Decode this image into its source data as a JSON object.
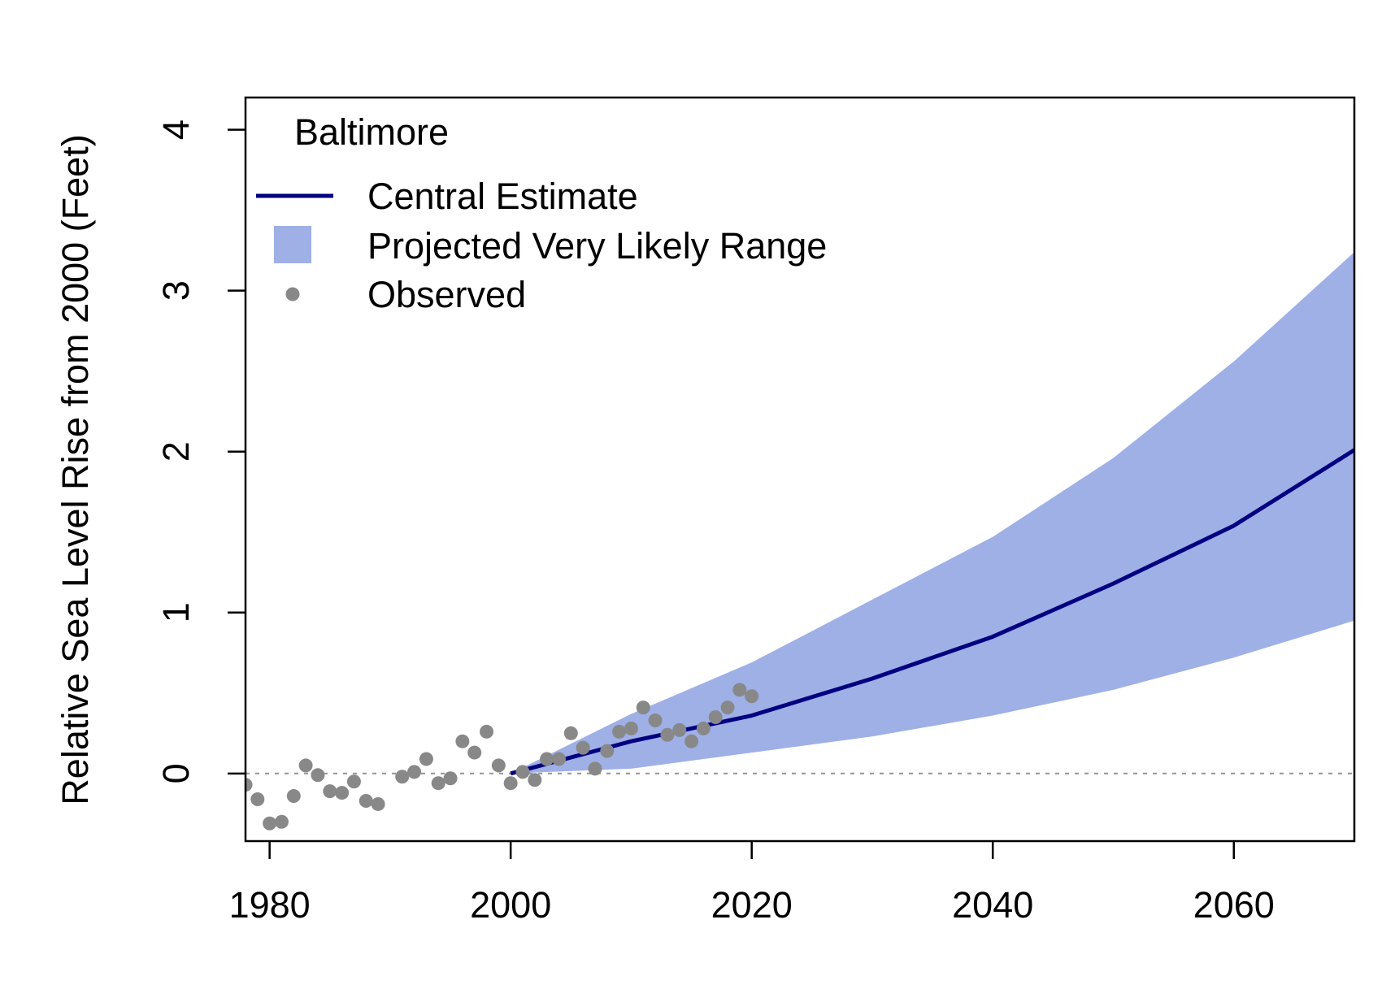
{
  "chart_data": {
    "type": "line",
    "title": "",
    "xlabel": "",
    "ylabel": "Relative Sea Level Rise from 2000 (Feet)",
    "xlim": [
      1978,
      2070
    ],
    "ylim": [
      -0.42,
      4.2
    ],
    "x_ticks": [
      1980,
      2000,
      2020,
      2040,
      2060
    ],
    "y_ticks": [
      0,
      1,
      2,
      3,
      4
    ],
    "grid": false,
    "zero_reference_line": true,
    "legend": {
      "position": "top-left",
      "title": "Baltimore",
      "entries": [
        {
          "label": "Central Estimate",
          "kind": "line",
          "color": "#000080"
        },
        {
          "label": "Projected Very Likely Range",
          "kind": "band",
          "color": "#9EB0E6"
        },
        {
          "label": "Observed",
          "kind": "point",
          "color": "#888888"
        }
      ]
    },
    "series": [
      {
        "name": "Projected Very Likely Range",
        "kind": "band",
        "color": "#9EB0E6",
        "x": [
          2000,
          2010,
          2020,
          2030,
          2040,
          2050,
          2060,
          2070
        ],
        "lower": [
          0.0,
          0.03,
          0.13,
          0.23,
          0.36,
          0.52,
          0.72,
          0.95
        ],
        "upper": [
          0.0,
          0.37,
          0.69,
          1.08,
          1.47,
          1.96,
          2.56,
          3.24
        ]
      },
      {
        "name": "Central Estimate",
        "kind": "line",
        "color": "#000080",
        "x": [
          2000,
          2010,
          2020,
          2030,
          2040,
          2050,
          2060,
          2070
        ],
        "y": [
          0.0,
          0.2,
          0.36,
          0.59,
          0.85,
          1.18,
          1.54,
          2.01
        ]
      },
      {
        "name": "Observed",
        "kind": "point",
        "color": "#888888",
        "x": [
          1978,
          1979,
          1980,
          1981,
          1982,
          1983,
          1984,
          1985,
          1986,
          1987,
          1988,
          1989,
          1991,
          1992,
          1993,
          1994,
          1995,
          1996,
          1997,
          1998,
          1999,
          2000,
          2001,
          2002,
          2003,
          2004,
          2005,
          2006,
          2007,
          2008,
          2009,
          2010,
          2011,
          2012,
          2013,
          2014,
          2015,
          2016,
          2017,
          2018,
          2019,
          2020
        ],
        "y": [
          -0.07,
          -0.16,
          -0.31,
          -0.3,
          -0.14,
          0.05,
          -0.01,
          -0.11,
          -0.12,
          -0.05,
          -0.17,
          -0.19,
          -0.02,
          0.01,
          0.09,
          -0.06,
          -0.03,
          0.2,
          0.13,
          0.26,
          0.05,
          -0.06,
          0.01,
          -0.04,
          0.09,
          0.09,
          0.25,
          0.16,
          0.03,
          0.14,
          0.26,
          0.28,
          0.41,
          0.33,
          0.24,
          0.27,
          0.2,
          0.28,
          0.35,
          0.41,
          0.52,
          0.48
        ]
      }
    ]
  }
}
